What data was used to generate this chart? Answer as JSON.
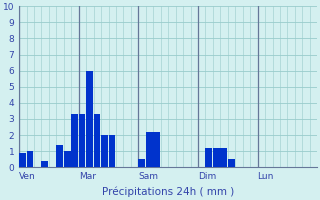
{
  "xlabel": "Précipitations 24h ( mm )",
  "background_color": "#d4f0f0",
  "bar_color": "#0033cc",
  "grid_color": "#99cccc",
  "ylim": [
    0,
    10
  ],
  "yticks": [
    0,
    1,
    2,
    3,
    4,
    5,
    6,
    7,
    8,
    9,
    10
  ],
  "n_bars": 40,
  "bar_values": [
    0.9,
    1.0,
    0.0,
    0.4,
    0.0,
    1.4,
    1.0,
    3.3,
    3.3,
    6.0,
    3.3,
    2.0,
    2.0,
    0.0,
    0.0,
    0.0,
    0.5,
    2.2,
    2.2,
    0.0,
    0.0,
    0.0,
    0.0,
    0.0,
    0.0,
    1.2,
    1.2,
    1.2,
    0.5,
    0.0,
    0.0,
    0.0,
    0.0,
    0.0,
    0.0,
    0.0,
    0.0,
    0.0,
    0.0,
    0.0
  ],
  "day_tick_positions": [
    0,
    8,
    16,
    24,
    32
  ],
  "day_labels": [
    "Ven",
    "Mar",
    "Sam",
    "Dim",
    "Lun"
  ],
  "vline_color": "#667799",
  "spine_color": "#667799",
  "label_color": "#3344aa",
  "bar_width": 0.9
}
